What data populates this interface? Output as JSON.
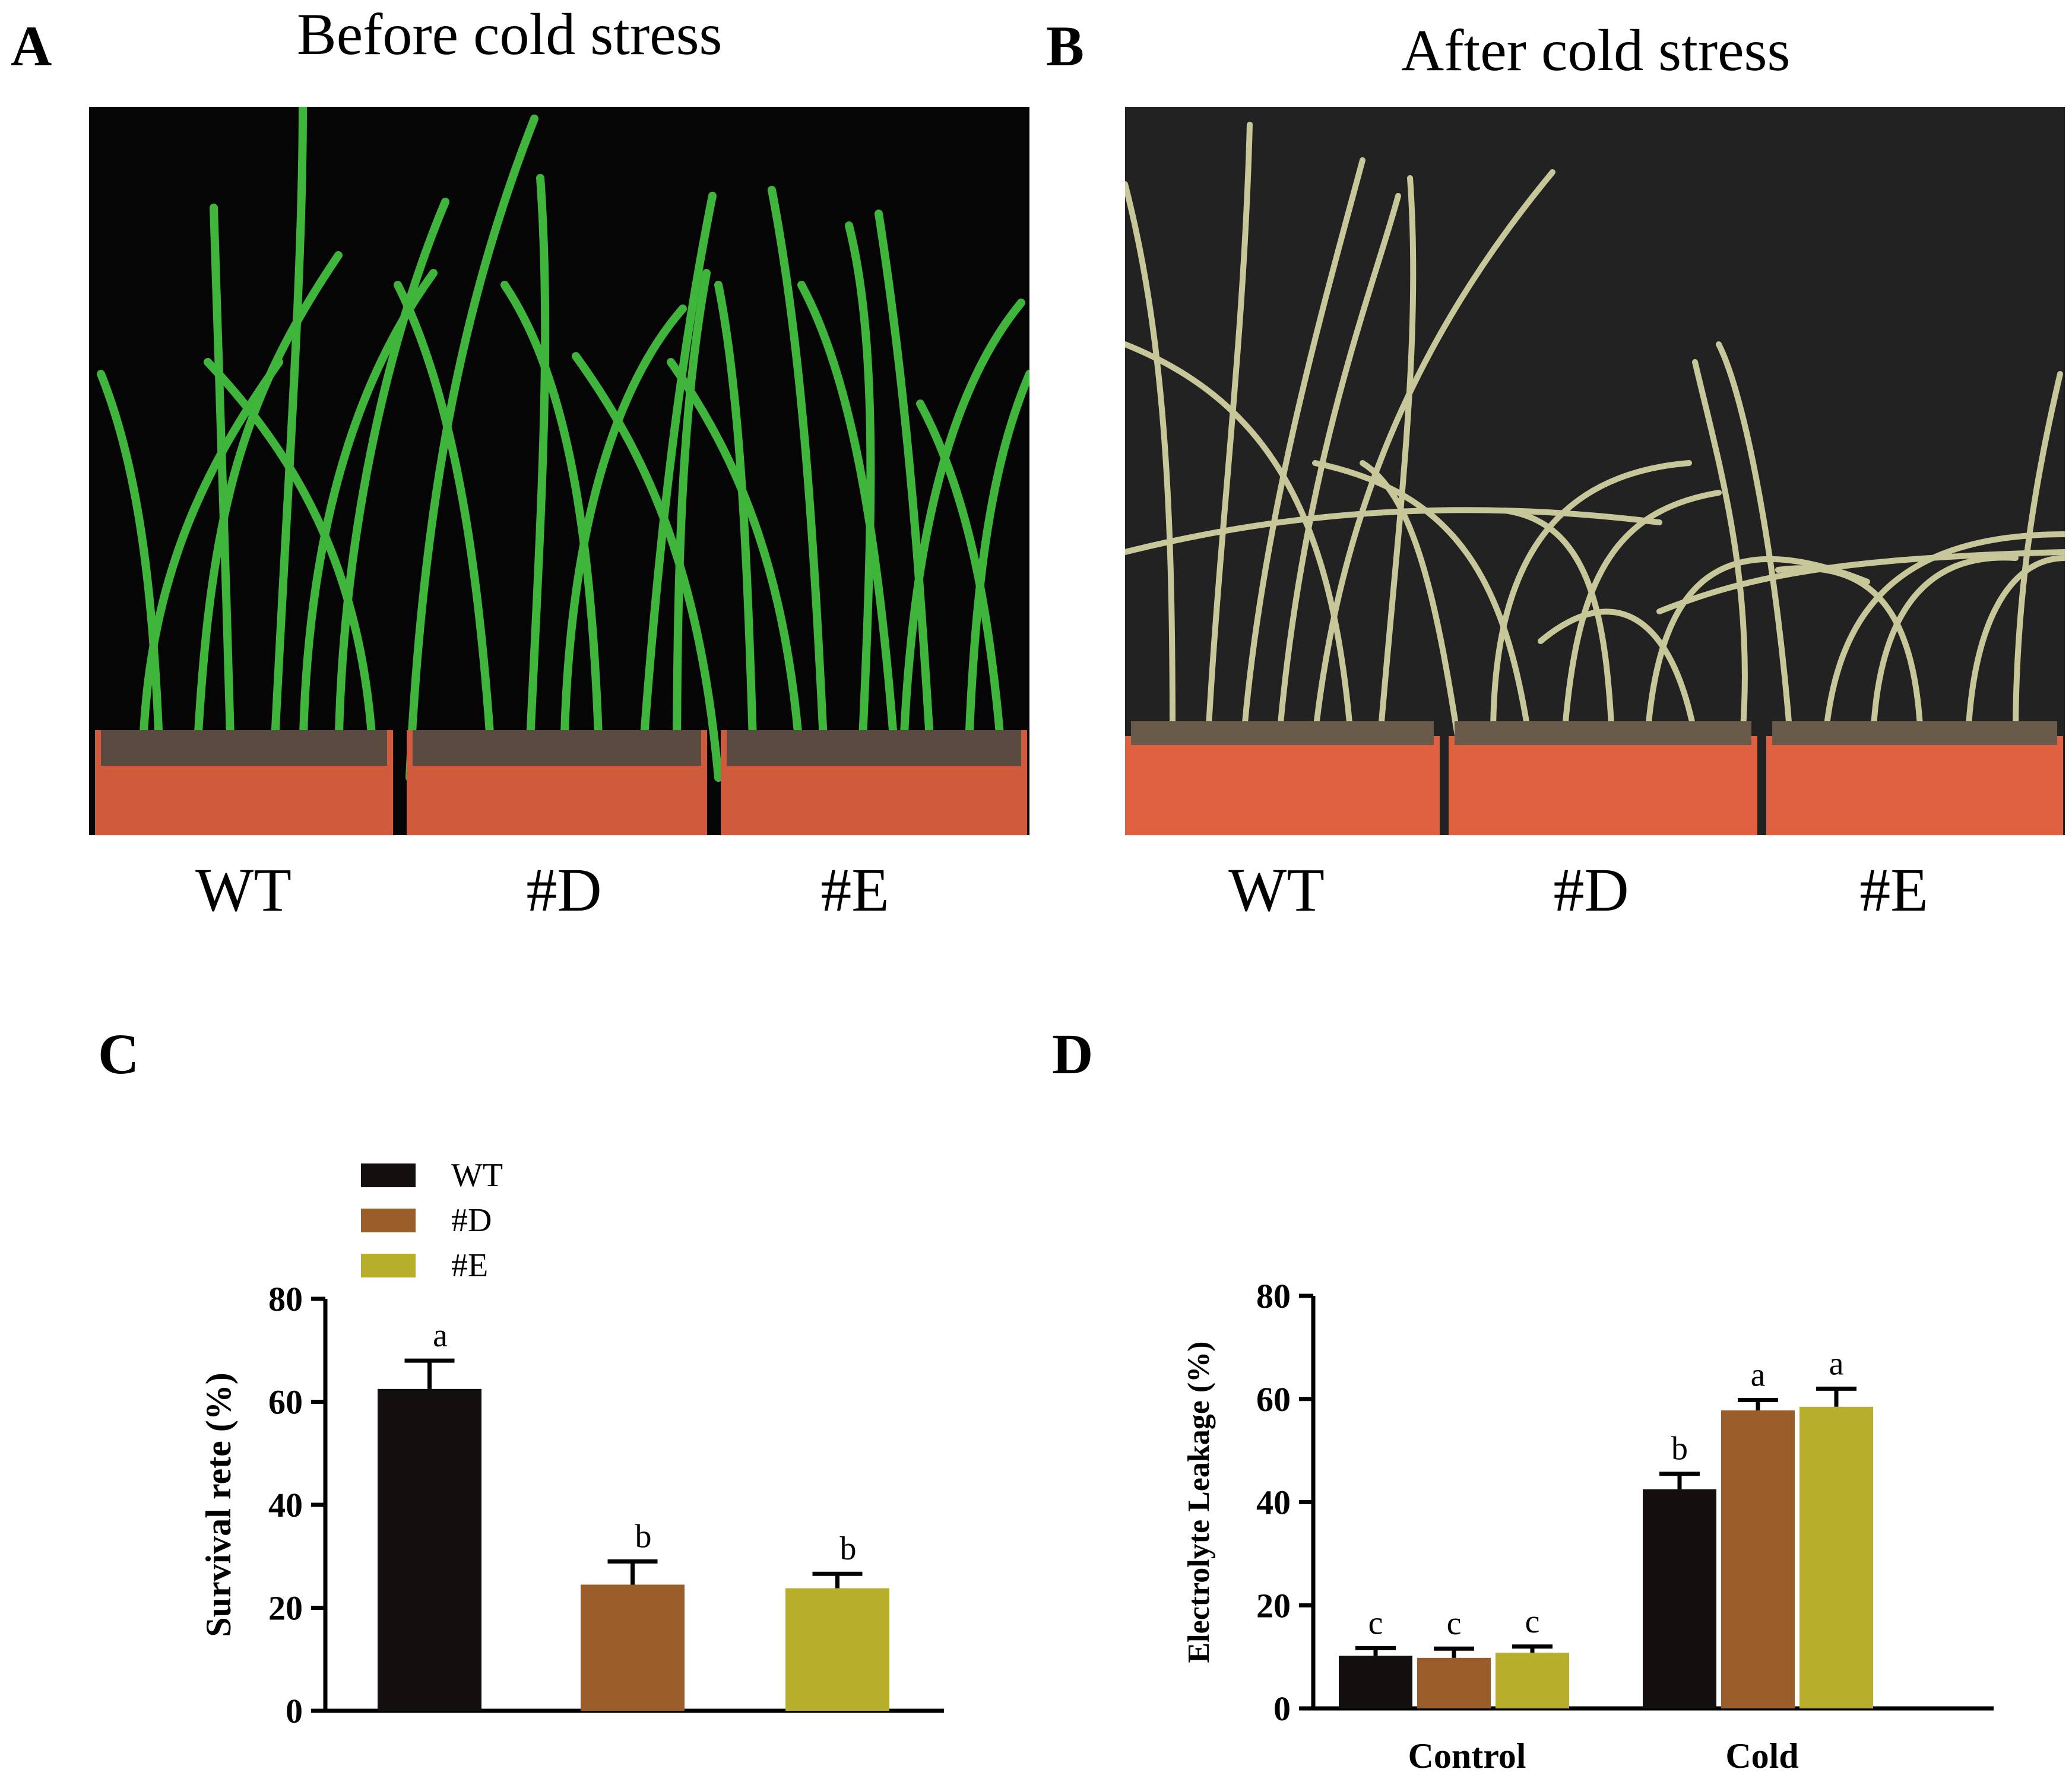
{
  "panels": {
    "A": {
      "letter": "A",
      "title": "Before cold stress",
      "labels": [
        "WT",
        "#D",
        "#E"
      ]
    },
    "B": {
      "letter": "B",
      "title": "After cold stress",
      "labels": [
        "WT",
        "#D",
        "#E"
      ]
    },
    "C": {
      "letter": "C"
    },
    "D": {
      "letter": "D"
    }
  },
  "colors": {
    "wt": "#130f0e",
    "d": "#9a5c29",
    "e": "#b7ae2c",
    "photo_bg_a": "#050505",
    "photo_bg_b": "#222222",
    "pot": "#cf5a3c",
    "leaf_green": "#3fb63b",
    "leaf_straw": "#c7c79a"
  },
  "chart_data": [
    {
      "type": "bar",
      "panel": "C",
      "ylabel": "Survival rete (%)",
      "ylim": [
        0,
        80
      ],
      "yticks": [
        0,
        20,
        40,
        60,
        80
      ],
      "legend": [
        "WT",
        "#D",
        "#E"
      ],
      "categories": [
        "WT",
        "#D",
        "#E"
      ],
      "values": [
        62.5,
        24.5,
        23.8
      ],
      "errors": [
        5.5,
        4.5,
        2.8
      ],
      "letters": [
        "a",
        "b",
        "b"
      ]
    },
    {
      "type": "bar",
      "panel": "D",
      "ylabel": "Electrolyte Leakage (%)",
      "ylim": [
        0,
        80
      ],
      "yticks": [
        0,
        20,
        40,
        60,
        80
      ],
      "categories": [
        "Control",
        "Cold"
      ],
      "series": [
        {
          "name": "WT",
          "values": [
            10.2,
            42.5
          ],
          "errors": [
            1.5,
            3.0
          ],
          "letters": [
            "c",
            "b"
          ]
        },
        {
          "name": "#D",
          "values": [
            9.8,
            57.8
          ],
          "errors": [
            1.8,
            2.0
          ],
          "letters": [
            "c",
            "a"
          ]
        },
        {
          "name": "#E",
          "values": [
            10.8,
            58.5
          ],
          "errors": [
            1.2,
            3.5
          ],
          "letters": [
            "c",
            "a"
          ]
        }
      ]
    }
  ]
}
